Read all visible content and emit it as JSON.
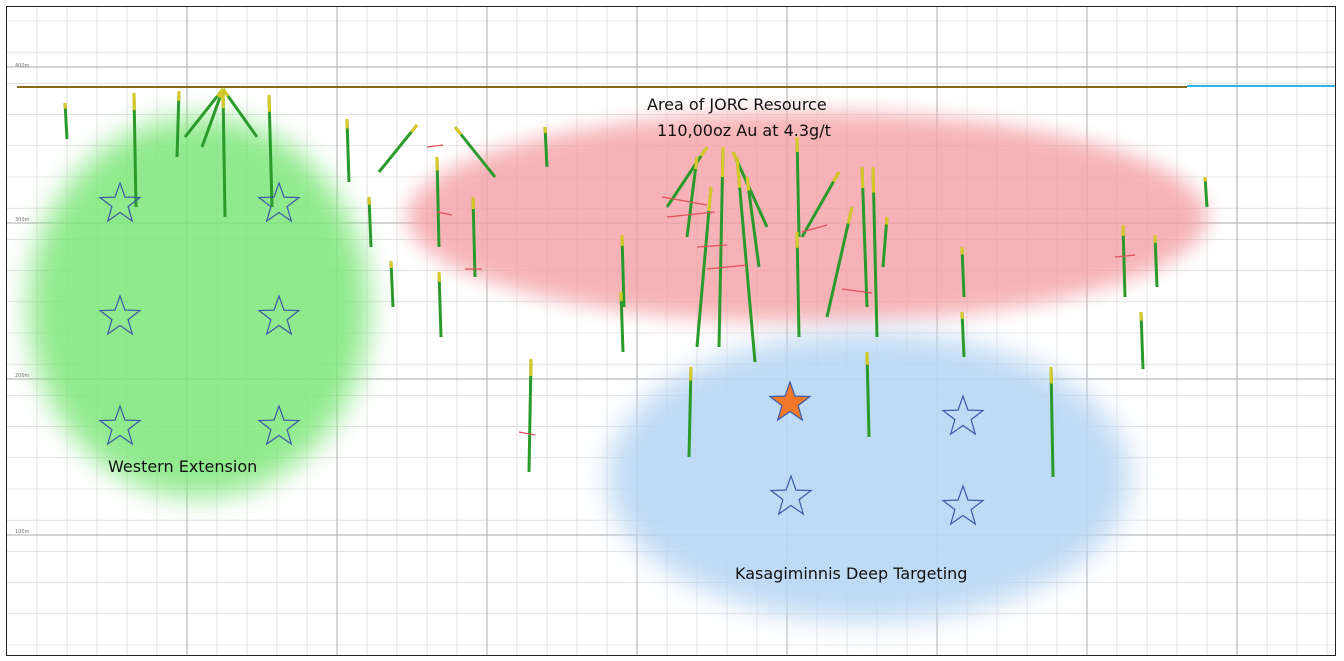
{
  "zones": {
    "resource": {
      "title": "Area of JORC Resource",
      "subtitle": "110,00oz Au at 4.3g/t",
      "color": "#f4a0a4"
    },
    "western": {
      "label": "Western Extension",
      "color": "#7ee67a"
    },
    "deep": {
      "label": "Kasagiminnis Deep Targeting",
      "color": "#b9d7f3"
    }
  },
  "colors": {
    "surface_line": "#8a6a10",
    "surface_line_east": "#29b6e6",
    "target_star_outline": "#3b5aa8",
    "priority_star_fill": "#f07828",
    "grid": "#cfcfcf",
    "drillhole_primary": "#2a9a2a",
    "drillhole_mineralised": "#d8c828",
    "assay_intercept": "#e0505a"
  },
  "targets": {
    "western": [
      "target-star",
      "target-star",
      "target-star",
      "target-star",
      "target-star",
      "target-star"
    ],
    "deep": [
      "priority-target-star",
      "target-star",
      "target-star",
      "target-star"
    ]
  }
}
